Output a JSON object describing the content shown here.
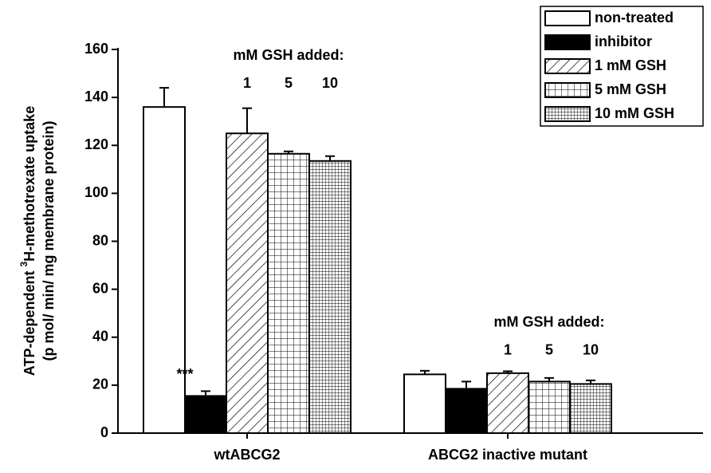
{
  "chart_data": {
    "type": "bar",
    "y_label": {
      "prefix": "ATP-dependent ",
      "superscript": "3",
      "suffix": "H-methotrexate uptake"
    },
    "y_label_line2": "(p mol/ min/ mg membrane protein)",
    "categories": [
      "wtABCG2",
      "ABCG2 inactive mutant"
    ],
    "series": [
      {
        "name": "non-treated",
        "color": "#ffffff",
        "pattern": "none",
        "values": [
          136,
          24.5
        ],
        "errors": [
          8,
          1.5
        ]
      },
      {
        "name": "inhibitor",
        "color": "#000000",
        "pattern": "solid",
        "values": [
          15.5,
          18.5
        ],
        "errors": [
          2,
          3
        ]
      },
      {
        "name": "1 mM GSH",
        "color": "#ffffff",
        "pattern": "diagonal",
        "values": [
          125,
          25
        ],
        "errors": [
          10.5,
          0.8
        ]
      },
      {
        "name": "5 mM GSH",
        "color": "#ffffff",
        "pattern": "grid",
        "values": [
          116.5,
          21.5
        ],
        "errors": [
          1,
          1.5
        ]
      },
      {
        "name": "10 mM GSH",
        "color": "#ffffff",
        "pattern": "fine-grid",
        "values": [
          113.5,
          20.5
        ],
        "errors": [
          2,
          1.5
        ]
      }
    ],
    "group_annotations": [
      {
        "heading": "mM GSH added:",
        "labels": [
          "1",
          "5",
          "10"
        ]
      },
      {
        "heading": "mM GSH added:",
        "labels": [
          "1",
          "5",
          "10"
        ]
      }
    ],
    "significance": "***",
    "ylim": [
      0,
      160
    ],
    "yticks": [
      0,
      20,
      40,
      60,
      80,
      100,
      120,
      140,
      160
    ],
    "legend": "top-right"
  }
}
